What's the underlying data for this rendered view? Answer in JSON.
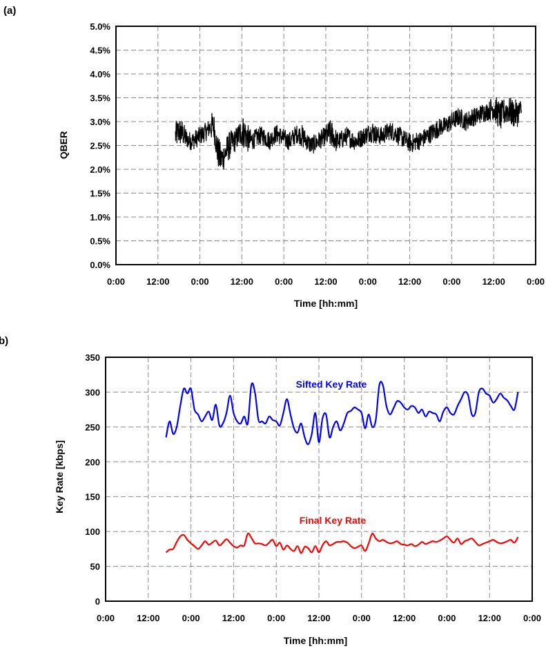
{
  "chart_data": [
    {
      "panel_label": "(a)",
      "type": "line",
      "xlabel": "Time [hh:mm]",
      "ylabel": "QBER",
      "x_tick_labels": [
        "0:00",
        "12:00",
        "0:00",
        "12:00",
        "0:00",
        "12:00",
        "0:00",
        "12:00",
        "0:00",
        "12:00",
        "0:00"
      ],
      "x_unit": "hours",
      "xlim": [
        0,
        120
      ],
      "ylim": [
        0,
        5
      ],
      "y_unit": "percent",
      "y_tick_labels": [
        "0.0%",
        "0.5%",
        "1.0%",
        "1.5%",
        "2.0%",
        "2.5%",
        "3.0%",
        "3.5%",
        "4.0%",
        "4.5%",
        "5.0%"
      ],
      "grid": true,
      "series": [
        {
          "color": "#000000",
          "x": [
            17,
            18,
            19,
            20,
            21,
            22,
            23,
            24,
            25,
            26,
            27,
            28,
            29,
            30,
            31,
            32,
            33,
            34,
            35,
            36,
            37,
            38,
            39,
            40,
            41,
            42,
            43,
            44,
            45,
            46,
            47,
            48,
            49,
            50,
            51,
            52,
            53,
            54,
            55,
            56,
            57,
            58,
            59,
            60,
            61,
            62,
            63,
            64,
            65,
            66,
            67,
            68,
            69,
            70,
            71,
            72,
            73,
            74,
            75,
            76,
            77,
            78,
            79,
            80,
            81,
            82,
            83,
            84,
            85,
            86,
            87,
            88,
            89,
            90,
            91,
            92,
            93,
            94,
            95,
            96,
            97,
            98,
            99,
            100,
            101,
            102,
            103,
            104,
            105,
            106,
            107,
            108,
            109,
            110,
            111,
            112,
            113,
            114,
            115,
            116
          ],
          "y": [
            2.7,
            2.8,
            2.75,
            2.65,
            2.6,
            2.6,
            2.65,
            2.7,
            2.75,
            2.8,
            2.9,
            2.9,
            2.4,
            2.2,
            2.3,
            2.45,
            2.55,
            2.6,
            2.7,
            2.8,
            2.75,
            2.6,
            2.6,
            2.65,
            2.7,
            2.7,
            2.65,
            2.6,
            2.7,
            2.75,
            2.7,
            2.65,
            2.6,
            2.6,
            2.7,
            2.75,
            2.7,
            2.65,
            2.55,
            2.5,
            2.55,
            2.6,
            2.65,
            2.7,
            2.75,
            2.7,
            2.6,
            2.6,
            2.65,
            2.7,
            2.65,
            2.6,
            2.6,
            2.65,
            2.7,
            2.75,
            2.8,
            2.75,
            2.7,
            2.7,
            2.75,
            2.8,
            2.8,
            2.75,
            2.7,
            2.65,
            2.6,
            2.55,
            2.55,
            2.6,
            2.6,
            2.65,
            2.7,
            2.75,
            2.8,
            2.85,
            2.9,
            2.9,
            2.95,
            3.0,
            3.05,
            3.1,
            3.05,
            3.0,
            3.05,
            3.1,
            3.1,
            3.15,
            3.2,
            3.2,
            3.25,
            3.3,
            3.2,
            3.1,
            3.2,
            3.25,
            3.2,
            3.15,
            3.2,
            3.25
          ],
          "spread": [
            0.3,
            0.3,
            0.25,
            0.2,
            0.2,
            0.2,
            0.2,
            0.2,
            0.2,
            0.2,
            0.3,
            0.3,
            0.35,
            0.3,
            0.3,
            0.3,
            0.25,
            0.25,
            0.3,
            0.35,
            0.3,
            0.25,
            0.2,
            0.2,
            0.2,
            0.2,
            0.2,
            0.2,
            0.2,
            0.2,
            0.2,
            0.2,
            0.2,
            0.2,
            0.2,
            0.2,
            0.25,
            0.2,
            0.2,
            0.2,
            0.2,
            0.2,
            0.2,
            0.25,
            0.3,
            0.25,
            0.2,
            0.2,
            0.2,
            0.2,
            0.2,
            0.2,
            0.2,
            0.2,
            0.2,
            0.2,
            0.25,
            0.2,
            0.2,
            0.2,
            0.2,
            0.2,
            0.2,
            0.2,
            0.2,
            0.2,
            0.2,
            0.2,
            0.2,
            0.2,
            0.2,
            0.2,
            0.2,
            0.2,
            0.2,
            0.2,
            0.2,
            0.2,
            0.2,
            0.2,
            0.2,
            0.2,
            0.2,
            0.2,
            0.2,
            0.2,
            0.2,
            0.2,
            0.2,
            0.2,
            0.25,
            0.3,
            0.3,
            0.3,
            0.3,
            0.3,
            0.3,
            0.3,
            0.25,
            0.25
          ]
        }
      ]
    },
    {
      "panel_label": "b)",
      "type": "line",
      "xlabel": "Time [hh:mm]",
      "ylabel": "Key Rate [kbps]",
      "x_tick_labels": [
        "0:00",
        "12:00",
        "0:00",
        "12:00",
        "0:00",
        "12:00",
        "0:00",
        "12:00",
        "0:00",
        "12:00",
        "0:00"
      ],
      "x_unit": "hours",
      "xlim": [
        0,
        120
      ],
      "ylim": [
        0,
        350
      ],
      "y_tick_labels": [
        "0",
        "50",
        "100",
        "150",
        "200",
        "250",
        "300",
        "350"
      ],
      "grid": true,
      "series": [
        {
          "name": "Sifted Key Rate",
          "color": "#0000ff",
          "x": [
            17,
            18,
            19,
            20,
            21,
            22,
            23,
            24,
            25,
            26,
            27,
            28,
            29,
            30,
            31,
            32,
            33,
            34,
            35,
            36,
            37,
            38,
            39,
            40,
            41,
            42,
            43,
            44,
            45,
            46,
            47,
            48,
            49,
            50,
            51,
            52,
            53,
            54,
            55,
            56,
            57,
            58,
            59,
            60,
            61,
            62,
            63,
            64,
            65,
            66,
            67,
            68,
            69,
            70,
            71,
            72,
            73,
            74,
            75,
            76,
            77,
            78,
            79,
            80,
            81,
            82,
            83,
            84,
            85,
            86,
            87,
            88,
            89,
            90,
            91,
            92,
            93,
            94,
            95,
            96,
            97,
            98,
            99,
            100,
            101,
            102,
            103,
            104,
            105,
            106,
            107,
            108,
            109,
            110,
            111,
            112,
            113,
            114,
            115,
            116
          ],
          "y": [
            235,
            258,
            240,
            250,
            280,
            305,
            298,
            305,
            275,
            268,
            258,
            265,
            272,
            260,
            282,
            252,
            255,
            270,
            295,
            270,
            258,
            255,
            265,
            255,
            310,
            300,
            260,
            258,
            255,
            265,
            260,
            258,
            252,
            270,
            290,
            268,
            248,
            242,
            255,
            235,
            225,
            240,
            270,
            228,
            262,
            268,
            235,
            250,
            258,
            245,
            255,
            270,
            273,
            278,
            275,
            270,
            248,
            268,
            250,
            260,
            310,
            310,
            280,
            268,
            277,
            287,
            285,
            278,
            275,
            280,
            278,
            270,
            275,
            265,
            272,
            270,
            268,
            258,
            272,
            278,
            270,
            268,
            280,
            290,
            300,
            295,
            268,
            270,
            300,
            305,
            298,
            295,
            285,
            290,
            298,
            292,
            288,
            280,
            275,
            300
          ],
          "label_position": "center-top"
        },
        {
          "name": "Final Key Rate",
          "color": "#ff0000",
          "x": [
            17,
            18,
            19,
            20,
            21,
            22,
            23,
            24,
            25,
            26,
            27,
            28,
            29,
            30,
            31,
            32,
            33,
            34,
            35,
            36,
            37,
            38,
            39,
            40,
            41,
            42,
            43,
            44,
            45,
            46,
            47,
            48,
            49,
            50,
            51,
            52,
            53,
            54,
            55,
            56,
            57,
            58,
            59,
            60,
            61,
            62,
            63,
            64,
            65,
            66,
            67,
            68,
            69,
            70,
            71,
            72,
            73,
            74,
            75,
            76,
            77,
            78,
            79,
            80,
            81,
            82,
            83,
            84,
            85,
            86,
            87,
            88,
            89,
            90,
            91,
            92,
            93,
            94,
            95,
            96,
            97,
            98,
            99,
            100,
            101,
            102,
            103,
            104,
            105,
            106,
            107,
            108,
            109,
            110,
            111,
            112,
            113,
            114,
            115,
            116
          ],
          "y": [
            70,
            74,
            75,
            85,
            93,
            95,
            88,
            83,
            79,
            75,
            80,
            86,
            81,
            84,
            87,
            80,
            84,
            89,
            84,
            79,
            77,
            80,
            80,
            97,
            91,
            83,
            83,
            82,
            80,
            84,
            88,
            79,
            84,
            74,
            80,
            75,
            72,
            79,
            69,
            78,
            76,
            70,
            79,
            70,
            80,
            86,
            80,
            82,
            85,
            85,
            86,
            84,
            79,
            76,
            78,
            80,
            72,
            83,
            97,
            90,
            86,
            88,
            85,
            83,
            84,
            86,
            82,
            81,
            80,
            82,
            79,
            81,
            85,
            82,
            84,
            86,
            85,
            87,
            90,
            93,
            88,
            84,
            90,
            82,
            86,
            88,
            90,
            85,
            80,
            82,
            84,
            86,
            88,
            85,
            83,
            84,
            86,
            88,
            84,
            92
          ],
          "label_position": "center"
        }
      ]
    }
  ]
}
